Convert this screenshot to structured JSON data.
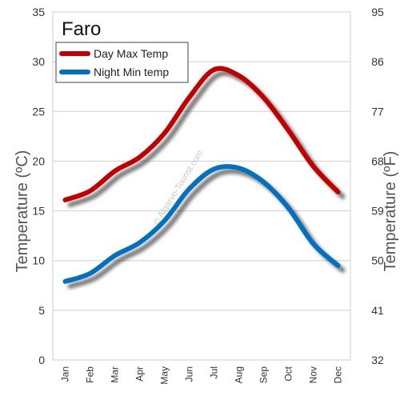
{
  "chart_data": {
    "type": "line",
    "title": "Faro",
    "watermark": "© Algarve-Tourist.com",
    "ylabel_left": "Temperature  (ºC)",
    "ylabel_right": "Temperature  (ºF)",
    "categories": [
      "Jan",
      "Feb",
      "Mar",
      "Apr",
      "May",
      "Jun",
      "Jul",
      "Aug",
      "Sep",
      "Oct",
      "Nov",
      "Dec"
    ],
    "ylim": [
      0,
      35
    ],
    "y_ticks_left": [
      "0",
      "5",
      "10",
      "15",
      "20",
      "25",
      "30",
      "35"
    ],
    "y_ticks_right": [
      "32",
      "41",
      "50",
      "59",
      "68",
      "77",
      "86",
      "95"
    ],
    "grid": true,
    "legend_position": "top-left",
    "series": [
      {
        "name": "Day Max Temp",
        "color": "#c00000",
        "values": [
          16.1,
          17.0,
          19.0,
          20.4,
          22.8,
          26.4,
          29.2,
          28.6,
          26.4,
          23.1,
          19.5,
          16.9
        ]
      },
      {
        "name": "Night Min temp",
        "color": "#0070c0",
        "values": [
          7.9,
          8.7,
          10.5,
          11.8,
          14.0,
          17.2,
          19.2,
          19.3,
          17.9,
          15.3,
          11.7,
          9.5
        ]
      }
    ]
  }
}
